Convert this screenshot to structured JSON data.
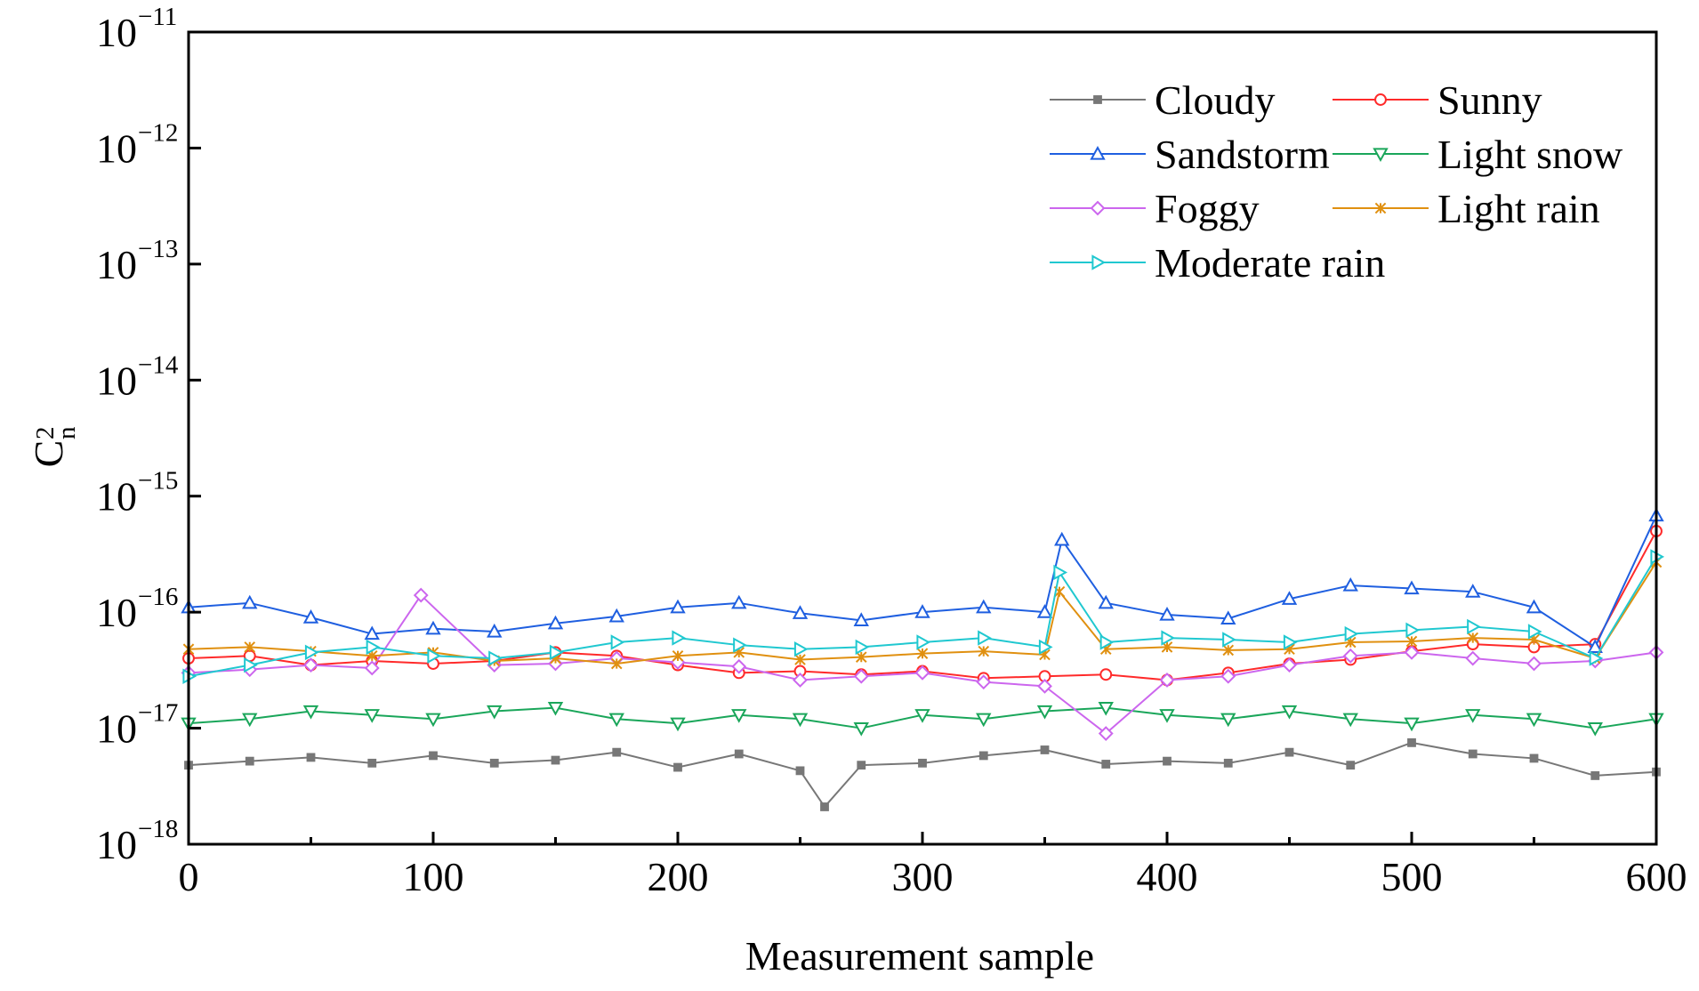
{
  "chart_data": {
    "type": "line",
    "title": "",
    "xlabel": "Measurement sample",
    "ylabel": {
      "base": "C",
      "superscript": "2",
      "subscript": "n"
    },
    "xlim": [
      0,
      600
    ],
    "ylim": [
      1e-18,
      1e-11
    ],
    "yscale": "log",
    "grid": false,
    "legend_position": "top-right",
    "xticks": [
      {
        "value": 0,
        "label": "0"
      },
      {
        "value": 100,
        "label": "100"
      },
      {
        "value": 200,
        "label": "200"
      },
      {
        "value": 300,
        "label": "300"
      },
      {
        "value": 400,
        "label": "400"
      },
      {
        "value": 500,
        "label": "500"
      },
      {
        "value": 600,
        "label": "600"
      }
    ],
    "yticks": [
      {
        "value": 1e-18,
        "base": "10",
        "exp": "−18"
      },
      {
        "value": 1e-17,
        "base": "10",
        "exp": "−17"
      },
      {
        "value": 1e-16,
        "base": "10",
        "exp": "−16"
      },
      {
        "value": 1e-15,
        "base": "10",
        "exp": "−15"
      },
      {
        "value": 1e-14,
        "base": "10",
        "exp": "−14"
      },
      {
        "value": 1e-13,
        "base": "10",
        "exp": "−13"
      },
      {
        "value": 1e-12,
        "base": "10",
        "exp": "−12"
      },
      {
        "value": 1e-11,
        "base": "10",
        "exp": "−11"
      }
    ],
    "series": [
      {
        "name": "Cloudy",
        "color": "#777777",
        "marker": "square-filled",
        "x": [
          0,
          25,
          50,
          75,
          100,
          125,
          150,
          175,
          200,
          225,
          250,
          260,
          275,
          300,
          325,
          350,
          375,
          400,
          425,
          450,
          475,
          500,
          525,
          550,
          575,
          600
        ],
        "y": [
          4.8e-18,
          5.2e-18,
          5.6e-18,
          5e-18,
          5.8e-18,
          5e-18,
          5.3e-18,
          6.2e-18,
          4.6e-18,
          6e-18,
          4.3e-18,
          2.1e-18,
          4.8e-18,
          5e-18,
          5.8e-18,
          6.5e-18,
          4.9e-18,
          5.2e-18,
          5e-18,
          6.2e-18,
          4.8e-18,
          7.5e-18,
          6e-18,
          5.5e-18,
          3.9e-18,
          4.2e-18
        ]
      },
      {
        "name": "Sunny",
        "color": "#ff2a2a",
        "marker": "circle-open",
        "x": [
          0,
          25,
          50,
          75,
          100,
          125,
          150,
          175,
          200,
          225,
          250,
          275,
          300,
          325,
          350,
          375,
          400,
          425,
          450,
          475,
          500,
          525,
          550,
          575,
          600
        ],
        "y": [
          4e-17,
          4.2e-17,
          3.5e-17,
          3.8e-17,
          3.6e-17,
          3.8e-17,
          4.5e-17,
          4.2e-17,
          3.5e-17,
          3e-17,
          3.1e-17,
          2.9e-17,
          3.1e-17,
          2.7e-17,
          2.8e-17,
          2.9e-17,
          2.6e-17,
          3e-17,
          3.6e-17,
          3.9e-17,
          4.6e-17,
          5.3e-17,
          5e-17,
          5.3e-17,
          5e-16
        ]
      },
      {
        "name": "Sandstorm",
        "color": "#1f5fe0",
        "marker": "triangle-up-open",
        "x": [
          0,
          25,
          50,
          75,
          100,
          125,
          150,
          175,
          200,
          225,
          250,
          275,
          300,
          325,
          350,
          357,
          375,
          400,
          425,
          450,
          475,
          500,
          525,
          550,
          575,
          600
        ],
        "y": [
          1.1e-16,
          1.2e-16,
          9e-17,
          6.5e-17,
          7.2e-17,
          6.8e-17,
          8e-17,
          9.2e-17,
          1.1e-16,
          1.2e-16,
          9.8e-17,
          8.5e-17,
          1e-16,
          1.1e-16,
          1e-16,
          4.2e-16,
          1.2e-16,
          9.5e-17,
          8.8e-17,
          1.3e-16,
          1.7e-16,
          1.6e-16,
          1.5e-16,
          1.1e-16,
          5e-17,
          6.8e-16
        ]
      },
      {
        "name": "Light snow",
        "color": "#1aa65a",
        "marker": "triangle-down-open",
        "x": [
          0,
          25,
          50,
          75,
          100,
          125,
          150,
          175,
          200,
          225,
          250,
          275,
          300,
          325,
          350,
          375,
          400,
          425,
          450,
          475,
          500,
          525,
          550,
          575,
          600
        ],
        "y": [
          1.1e-17,
          1.2e-17,
          1.4e-17,
          1.3e-17,
          1.2e-17,
          1.4e-17,
          1.5e-17,
          1.2e-17,
          1.1e-17,
          1.3e-17,
          1.2e-17,
          1e-17,
          1.3e-17,
          1.2e-17,
          1.4e-17,
          1.5e-17,
          1.3e-17,
          1.2e-17,
          1.4e-17,
          1.2e-17,
          1.1e-17,
          1.3e-17,
          1.2e-17,
          1e-17,
          1.2e-17
        ]
      },
      {
        "name": "Foggy",
        "color": "#cc66ee",
        "marker": "diamond-open",
        "x": [
          0,
          25,
          50,
          75,
          95,
          125,
          150,
          175,
          200,
          225,
          250,
          275,
          300,
          325,
          350,
          375,
          400,
          425,
          450,
          475,
          500,
          525,
          550,
          575,
          600
        ],
        "y": [
          3e-17,
          3.2e-17,
          3.5e-17,
          3.3e-17,
          1.4e-16,
          3.5e-17,
          3.6e-17,
          4e-17,
          3.7e-17,
          3.4e-17,
          2.6e-17,
          2.8e-17,
          3e-17,
          2.5e-17,
          2.3e-17,
          9e-18,
          2.6e-17,
          2.8e-17,
          3.5e-17,
          4.2e-17,
          4.5e-17,
          4e-17,
          3.6e-17,
          3.8e-17,
          4.5e-17
        ]
      },
      {
        "name": "Light rain",
        "color": "#e09010",
        "marker": "x-star",
        "x": [
          0,
          25,
          50,
          75,
          100,
          125,
          150,
          175,
          200,
          225,
          250,
          275,
          300,
          325,
          350,
          356,
          375,
          400,
          425,
          450,
          475,
          500,
          525,
          550,
          575,
          600
        ],
        "y": [
          4.8e-17,
          5e-17,
          4.6e-17,
          4.2e-17,
          4.5e-17,
          3.8e-17,
          4e-17,
          3.6e-17,
          4.2e-17,
          4.5e-17,
          3.9e-17,
          4.1e-17,
          4.4e-17,
          4.6e-17,
          4.3e-17,
          1.5e-16,
          4.8e-17,
          5e-17,
          4.7e-17,
          4.8e-17,
          5.5e-17,
          5.6e-17,
          6e-17,
          5.8e-17,
          4e-17,
          2.7e-16
        ]
      },
      {
        "name": "Moderate rain",
        "color": "#20c8d0",
        "marker": "triangle-right-open",
        "x": [
          0,
          25,
          50,
          75,
          100,
          125,
          150,
          175,
          200,
          225,
          250,
          275,
          300,
          325,
          350,
          356,
          375,
          400,
          425,
          450,
          475,
          500,
          525,
          550,
          575,
          600
        ],
        "y": [
          2.8e-17,
          3.5e-17,
          4.5e-17,
          5e-17,
          4.2e-17,
          4e-17,
          4.5e-17,
          5.5e-17,
          6e-17,
          5.2e-17,
          4.8e-17,
          5e-17,
          5.5e-17,
          6e-17,
          5e-17,
          2.2e-16,
          5.5e-17,
          6e-17,
          5.8e-17,
          5.5e-17,
          6.5e-17,
          7e-17,
          7.5e-17,
          6.8e-17,
          4e-17,
          3e-16
        ]
      }
    ]
  }
}
